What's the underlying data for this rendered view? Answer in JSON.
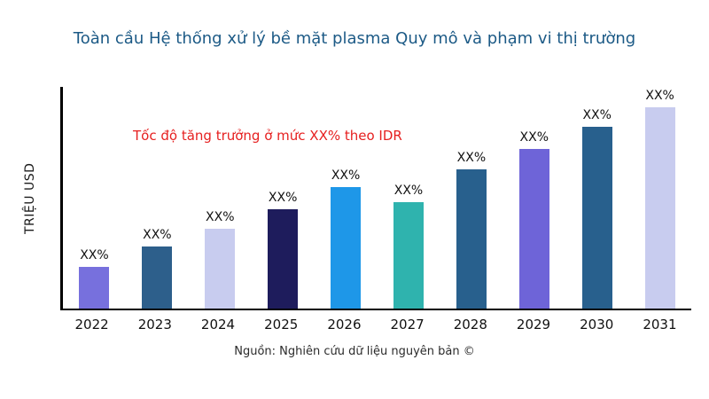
{
  "chart_data": {
    "type": "bar",
    "title": "Toàn cầu Hệ thống xử lý bề mặt plasma Quy mô và phạm vi thị trường",
    "ylabel": "TRIỆU USD",
    "xlabel": "",
    "annotation": "Tốc độ tăng trưởng ở mức XX% theo IDR",
    "source": "Nguồn: Nghiên cứu dữ liệu nguyên bản ©",
    "categories": [
      "2022",
      "2023",
      "2024",
      "2025",
      "2026",
      "2027",
      "2028",
      "2029",
      "2030",
      "2031"
    ],
    "values": [
      19,
      28,
      36,
      45,
      55,
      48,
      63,
      72,
      82,
      91
    ],
    "value_note": "relative bar heights, percent of plot height (no numeric axis shown)",
    "bar_labels": [
      "XX%",
      "XX%",
      "XX%",
      "XX%",
      "XX%",
      "XX%",
      "XX%",
      "XX%",
      "XX%",
      "XX%"
    ],
    "bar_colors": [
      "#7770dd",
      "#2d5f8b",
      "#c8ccef",
      "#1e1c5c",
      "#1e97e8",
      "#2fb3ae",
      "#28608d",
      "#6e64d8",
      "#28608d",
      "#c8ccef"
    ],
    "ylim": [
      0,
      100
    ],
    "grid": false,
    "legend": false,
    "title_color": "#1c5a86",
    "annotation_color": "#e62020"
  }
}
